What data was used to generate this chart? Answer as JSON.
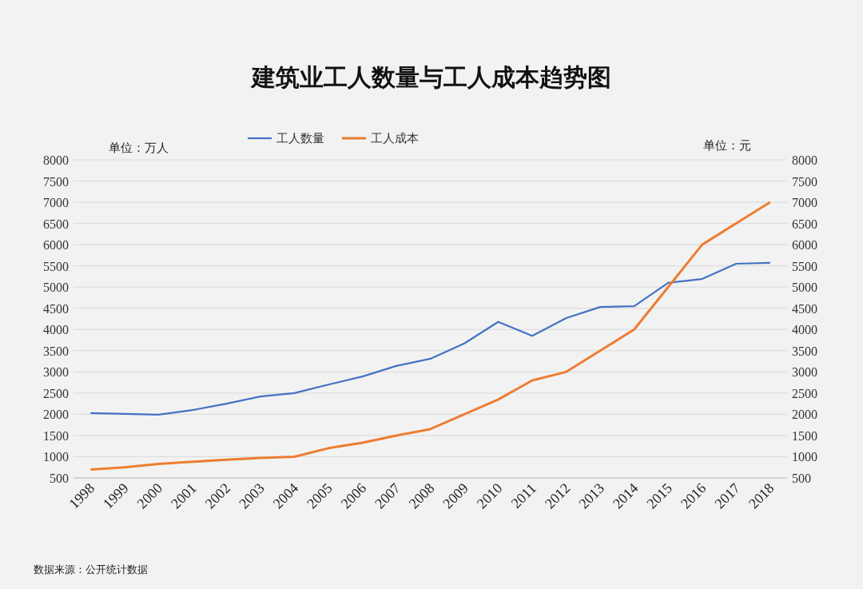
{
  "chart_data": {
    "type": "line",
    "title": "建筑业工人数量与工人成本趋势图",
    "ylabel": "单位：万人",
    "y2label": "单位：元",
    "categories": [
      "1998",
      "1999",
      "2000",
      "2001",
      "2002",
      "2003",
      "2004",
      "2005",
      "2006",
      "2007",
      "2008",
      "2009",
      "2010",
      "2011",
      "2012",
      "2013",
      "2014",
      "2015",
      "2016",
      "2017",
      "2018"
    ],
    "series": [
      {
        "name": "工人数量",
        "color": "#4472c4",
        "values": [
          2030,
          2010,
          1990,
          2100,
          2250,
          2420,
          2500,
          2700,
          2890,
          3140,
          3310,
          3670,
          4180,
          3850,
          4270,
          4530,
          4550,
          5100,
          5190,
          5550,
          5570
        ]
      },
      {
        "name": "工人成本",
        "color": "#ed7d31",
        "axis": "y2",
        "values": [
          700,
          750,
          830,
          880,
          930,
          970,
          1000,
          1200,
          1330,
          1500,
          1650,
          2000,
          2350,
          2800,
          3000,
          3500,
          4000,
          5000,
          6000,
          6500,
          7000
        ]
      }
    ],
    "ylim": [
      500,
      8000
    ],
    "yticks": [
      500,
      1000,
      1500,
      2000,
      2500,
      3000,
      3500,
      4000,
      4500,
      5000,
      5500,
      6000,
      6500,
      7000,
      7500,
      8000
    ],
    "y2lim": [
      500,
      8000
    ],
    "y2ticks": [
      500,
      1000,
      1500,
      2000,
      2500,
      3000,
      3500,
      4000,
      4500,
      5000,
      5500,
      6000,
      6500,
      7000,
      7500,
      8000
    ],
    "grid": "y",
    "legend": "top",
    "annotations": [
      "数据来源：公开统计数据"
    ]
  }
}
